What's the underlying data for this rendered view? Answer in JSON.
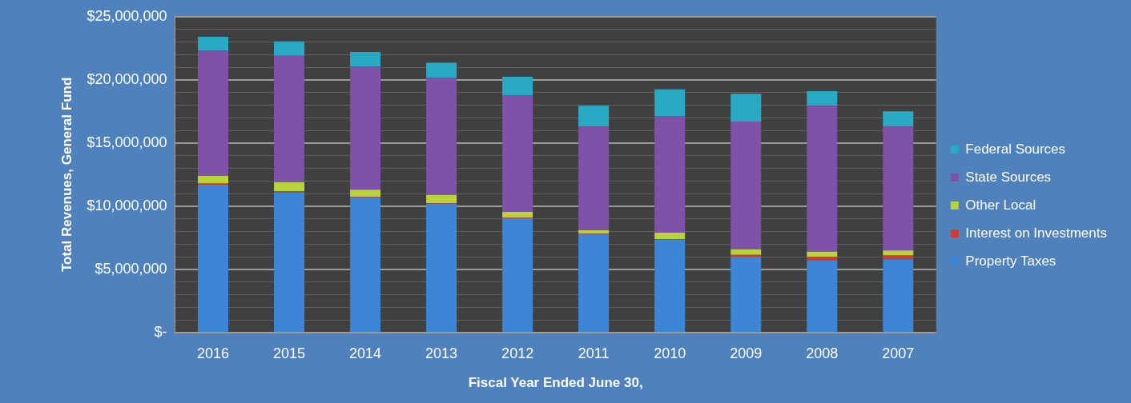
{
  "chart_data": {
    "type": "bar",
    "stacked": true,
    "xlabel": "Fiscal Year Ended June 30,",
    "ylabel": "Total Revenues, General Fund",
    "categories": [
      "2016",
      "2015",
      "2014",
      "2013",
      "2012",
      "2011",
      "2010",
      "2009",
      "2008",
      "2007"
    ],
    "series": [
      {
        "name": "Property Taxes",
        "color": "#3d85d6",
        "values": [
          11700000,
          11100000,
          10700000,
          10200000,
          9050000,
          7800000,
          7350000,
          6000000,
          5700000,
          5800000
        ]
      },
      {
        "name": "Interest on Investments",
        "color": "#d23b2e",
        "values": [
          100000,
          100000,
          50000,
          50000,
          50000,
          50000,
          50000,
          150000,
          300000,
          300000
        ]
      },
      {
        "name": "Other Local",
        "color": "#b8d43a",
        "values": [
          600000,
          700000,
          550000,
          650000,
          450000,
          250000,
          500000,
          450000,
          400000,
          400000
        ]
      },
      {
        "name": "State Sources",
        "color": "#7e52a8",
        "values": [
          9900000,
          10000000,
          9750000,
          9250000,
          9200000,
          8200000,
          9250000,
          10100000,
          11550000,
          9800000
        ]
      },
      {
        "name": "Federal Sources",
        "color": "#2aa9c4",
        "values": [
          1100000,
          1150000,
          1150000,
          1200000,
          1500000,
          1650000,
          2100000,
          2200000,
          1150000,
          1200000
        ]
      }
    ],
    "ylim": [
      0,
      25000000
    ],
    "yticks": [
      {
        "value": 0,
        "label": "$-"
      },
      {
        "value": 1000000,
        "label": null
      },
      {
        "value": 2000000,
        "label": null
      },
      {
        "value": 3000000,
        "label": null
      },
      {
        "value": 4000000,
        "label": null
      },
      {
        "value": 5000000,
        "label": "$5,000,000"
      },
      {
        "value": 6000000,
        "label": null
      },
      {
        "value": 7000000,
        "label": null
      },
      {
        "value": 8000000,
        "label": null
      },
      {
        "value": 9000000,
        "label": null
      },
      {
        "value": 10000000,
        "label": "$10,000,000"
      },
      {
        "value": 11000000,
        "label": null
      },
      {
        "value": 12000000,
        "label": null
      },
      {
        "value": 13000000,
        "label": null
      },
      {
        "value": 14000000,
        "label": null
      },
      {
        "value": 15000000,
        "label": "$15,000,000"
      },
      {
        "value": 16000000,
        "label": null
      },
      {
        "value": 17000000,
        "label": null
      },
      {
        "value": 18000000,
        "label": null
      },
      {
        "value": 19000000,
        "label": null
      },
      {
        "value": 20000000,
        "label": "$20,000,000"
      },
      {
        "value": 21000000,
        "label": null
      },
      {
        "value": 22000000,
        "label": null
      },
      {
        "value": 23000000,
        "label": null
      },
      {
        "value": 24000000,
        "label": null
      },
      {
        "value": 25000000,
        "label": "$25,000,000"
      }
    ],
    "grid": "y",
    "legend": "right"
  }
}
